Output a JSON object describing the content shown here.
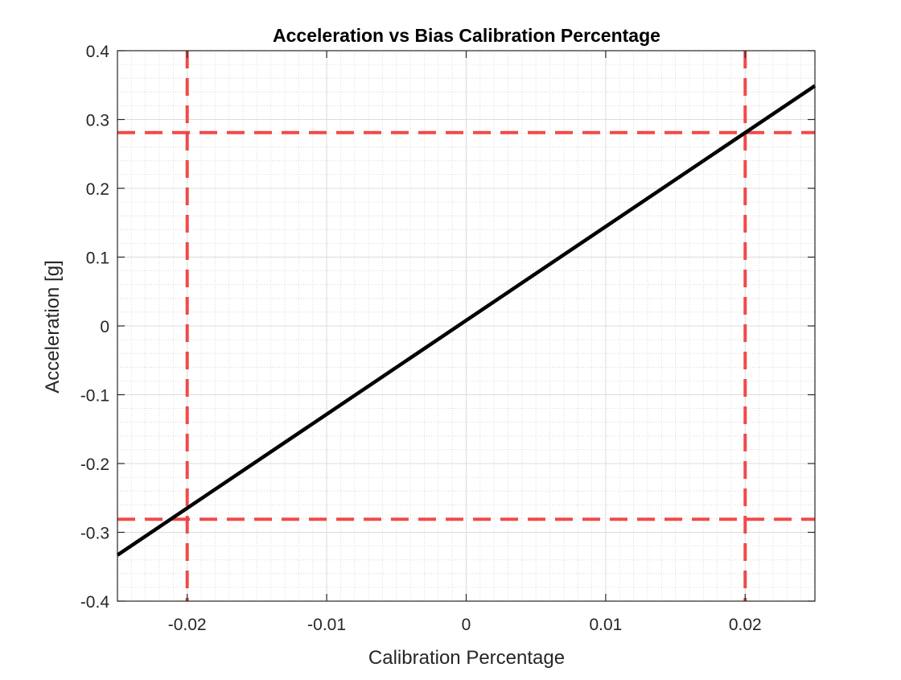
{
  "chart_data": {
    "type": "line",
    "title": "Acceleration vs Bias Calibration Percentage",
    "xlabel": "Calibration Percentage",
    "ylabel": "Acceleration [g]",
    "xlim": [
      -0.025,
      0.025
    ],
    "ylim": [
      -0.4,
      0.4
    ],
    "xticks": [
      -0.02,
      -0.01,
      0,
      0.01,
      0.02
    ],
    "xtick_labels": [
      "-0.02",
      "-0.01",
      "0",
      "0.01",
      "0.02"
    ],
    "yticks": [
      -0.4,
      -0.3,
      -0.2,
      -0.1,
      0,
      0.1,
      0.2,
      0.3,
      0.4
    ],
    "ytick_labels": [
      "-0.4",
      "-0.3",
      "-0.2",
      "-0.1",
      "0",
      "0.1",
      "0.2",
      "0.3",
      "0.4"
    ],
    "grid": true,
    "minor_grid": true,
    "series": [
      {
        "x": [
          -0.025,
          0.025
        ],
        "y": [
          -0.333,
          0.349
        ],
        "color": "#000000",
        "style": "solid"
      }
    ],
    "reference_lines": [
      {
        "orientation": "vertical",
        "value": -0.02,
        "color": "#f04040",
        "style": "dashed"
      },
      {
        "orientation": "vertical",
        "value": 0.02,
        "color": "#f04040",
        "style": "dashed"
      },
      {
        "orientation": "horizontal",
        "value": 0.281,
        "color": "#f04040",
        "style": "dashed"
      },
      {
        "orientation": "horizontal",
        "value": -0.281,
        "color": "#f04040",
        "style": "dashed"
      }
    ]
  }
}
